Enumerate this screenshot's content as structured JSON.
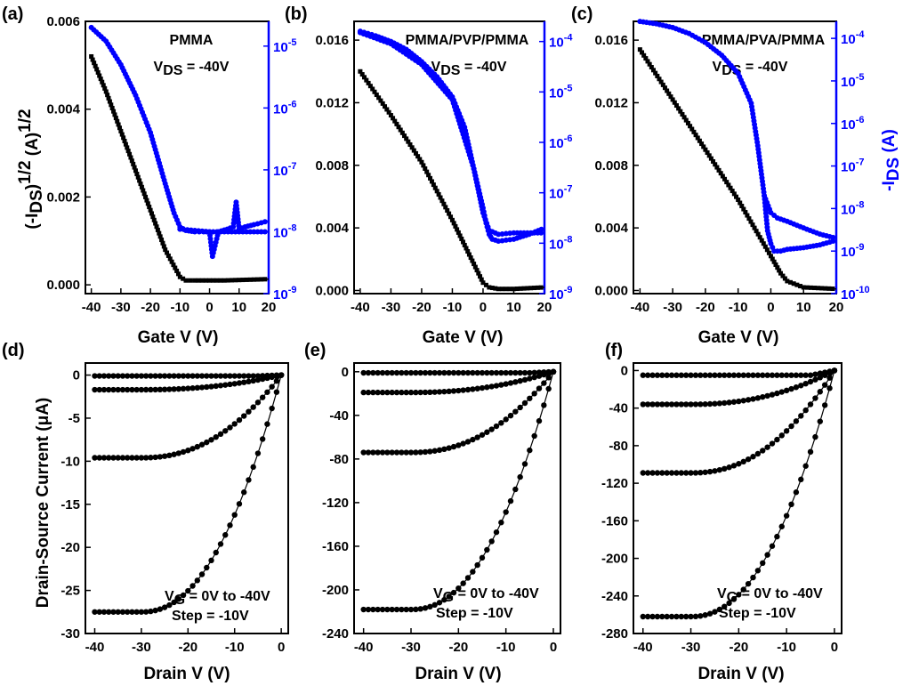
{
  "chart_data": [
    {
      "panel": "(a)",
      "type": "line",
      "xlabel": "Gate V (V)",
      "ylabel": "(-I_DS)^1/2 (A)^1/2",
      "xlim": [
        -42,
        20
      ],
      "xticks": [
        "-40",
        "-30",
        "-20",
        "-10",
        "0",
        "10",
        "20"
      ],
      "ylim": [
        -0.0002,
        0.006
      ],
      "yticks": [
        "0.000",
        "0.002",
        "0.004",
        "0.006"
      ],
      "y2_log": true,
      "y2lim_exp": [
        -9,
        -4.6
      ],
      "y2ticks_exp": [
        -9,
        -8,
        -7,
        -6,
        -5
      ],
      "annotations": [
        "PMMA",
        "V_DS = -40V"
      ],
      "colors": {
        "sqrt": "#000000",
        "log": "#0000ff"
      },
      "series": [
        {
          "x": [
            -40,
            -35,
            -30,
            -25,
            -20,
            -15,
            -10,
            -8,
            -5,
            0,
            5,
            10,
            20
          ],
          "values": [
            0.0052,
            0.0044,
            0.0035,
            0.0026,
            0.0017,
            0.0008,
            0.00018,
            0.0001,
            0.0001,
            0.0001,
            0.0001,
            0.00011,
            0.00013
          ]
        },
        {
          "x": [
            -40,
            -35,
            -30,
            -25,
            -20,
            -15,
            -12,
            -10,
            -8,
            -5,
            -2,
            0,
            1,
            3,
            6,
            8,
            9,
            10,
            12,
            15,
            20
          ],
          "values": [
            2e-05,
            1.2e-05,
            5e-06,
            1.6e-06,
            4e-07,
            6e-08,
            2e-08,
            1.2e-08,
            1.05e-08,
            1e-08,
            1e-08,
            1e-08,
            4e-09,
            1e-08,
            1.1e-08,
            1.2e-08,
            3e-08,
            1.1e-08,
            1.2e-08,
            1.3e-08,
            1.5e-08
          ]
        },
        {
          "x": [
            -10,
            0,
            10,
            20
          ],
          "values": [
            1.1e-08,
            1e-08,
            1e-08,
            1e-08
          ]
        }
      ]
    },
    {
      "panel": "(b)",
      "type": "line",
      "xlabel": "Gate V (V)",
      "ylabel": "",
      "xlim": [
        -42,
        20
      ],
      "xticks": [
        "-40",
        "-30",
        "-20",
        "-10",
        "0",
        "10",
        "20"
      ],
      "ylim": [
        -0.0002,
        0.0172
      ],
      "yticks": [
        "0.000",
        "0.004",
        "0.008",
        "0.012",
        "0.016"
      ],
      "y2_log": true,
      "y2lim_exp": [
        -9,
        -3.6
      ],
      "y2ticks_exp": [
        -9,
        -8,
        -7,
        -6,
        -5,
        -4
      ],
      "annotations": [
        "PMMA/PVP/PMMA",
        "V_DS = -40V"
      ],
      "colors": {
        "sqrt": "#000000",
        "log": "#0000ff"
      },
      "series": [
        {
          "x": [
            -40,
            -30,
            -20,
            -10,
            -5,
            0,
            2,
            5,
            10,
            20
          ],
          "values": [
            0.014,
            0.0112,
            0.0082,
            0.0045,
            0.0025,
            0.0005,
            0.0002,
            0.0001,
            0.0001,
            0.0002
          ]
        },
        {
          "x": [
            -40,
            -35,
            -30,
            -25,
            -20,
            -15,
            -10,
            -6,
            -3,
            0,
            1,
            2,
            3,
            5,
            10,
            15,
            20
          ],
          "values": [
            0.00016,
            0.00013,
            0.0001,
            7e-05,
            4e-05,
            2e-05,
            8e-06,
            2e-06,
            3e-07,
            5e-08,
            2.5e-08,
            1.5e-08,
            1.2e-08,
            1.1e-08,
            1.2e-08,
            1.5e-08,
            2e-08
          ]
        },
        {
          "x": [
            -40,
            -30,
            -20,
            -10,
            -3,
            0,
            2,
            5,
            10,
            20
          ],
          "values": [
            0.00015,
            9e-05,
            3.5e-05,
            7e-06,
            3e-07,
            4e-08,
            1.8e-08,
            1.5e-08,
            1.6e-08,
            1.6e-08
          ]
        }
      ]
    },
    {
      "panel": "(c)",
      "type": "line",
      "xlabel": "Gate V (V)",
      "ylabel": "-I_DS (A)",
      "xlim": [
        -42,
        20
      ],
      "xticks": [
        "-40",
        "-30",
        "-20",
        "-10",
        "0",
        "10",
        "20"
      ],
      "ylim": [
        -0.0002,
        0.0172
      ],
      "yticks": [
        "0.000",
        "0.004",
        "0.008",
        "0.012",
        "0.016"
      ],
      "y2_log": true,
      "y2lim_exp": [
        -10,
        -3.6
      ],
      "y2ticks_exp": [
        -10,
        -9,
        -8,
        -7,
        -6,
        -5,
        -4
      ],
      "annotations": [
        "PMMA/PVA/PMMA",
        "V_DS = -40V"
      ],
      "colors": {
        "sqrt": "#000000",
        "log": "#0000ff"
      },
      "series": [
        {
          "x": [
            -40,
            -30,
            -20,
            -10,
            -5,
            0,
            3,
            5,
            10,
            20
          ],
          "values": [
            0.0154,
            0.0122,
            0.009,
            0.0058,
            0.004,
            0.0022,
            0.0011,
            0.0006,
            0.0002,
            0.0001
          ]
        },
        {
          "x": [
            -40,
            -35,
            -30,
            -25,
            -20,
            -15,
            -10,
            -6,
            -4,
            -2,
            -1,
            0,
            1,
            3,
            5,
            10,
            15,
            20
          ],
          "values": [
            0.00025,
            0.00022,
            0.00018,
            0.00013,
            8e-05,
            4e-05,
            1.5e-05,
            3e-06,
            3e-07,
            2e-08,
            3e-09,
            1.5e-09,
            1e-09,
            1e-09,
            1.1e-09,
            1.2e-09,
            1.4e-09,
            1.8e-09
          ]
        },
        {
          "x": [
            -2,
            0,
            2,
            5,
            10,
            15,
            20
          ],
          "values": [
            2e-08,
            8e-09,
            6e-09,
            5e-09,
            3.5e-09,
            2.5e-09,
            2e-09
          ]
        }
      ]
    },
    {
      "panel": "(d)",
      "type": "line",
      "xlabel": "Drain V (V)",
      "ylabel": "Drain-Source Current (μA)",
      "xlim": [
        -42,
        1.5
      ],
      "xticks": [
        "-40",
        "-30",
        "-20",
        "-10",
        "0"
      ],
      "ylim": [
        -30,
        1.4
      ],
      "yticks": [
        "0",
        "-5",
        "-10",
        "-15",
        "-20",
        "-25",
        "-30"
      ],
      "annotations": [
        "V_G = 0V to -40V",
        "Step = -10V"
      ],
      "series": [
        {
          "sat": -0.1,
          "vth": -1
        },
        {
          "sat": -1.7,
          "vth": -2
        },
        {
          "sat": -9.6,
          "vth": -2
        },
        {
          "sat": -27.5,
          "vth": -2
        }
      ]
    },
    {
      "panel": "(e)",
      "type": "line",
      "xlabel": "Drain V (V)",
      "ylabel": "",
      "xlim": [
        -42,
        1.5
      ],
      "xticks": [
        "-40",
        "-30",
        "-20",
        "-10",
        "0"
      ],
      "ylim": [
        -240,
        8
      ],
      "yticks": [
        "0",
        "-40",
        "-80",
        "-120",
        "-160",
        "-200",
        "-240"
      ],
      "annotations": [
        "V_G = 0V to -40V",
        "Step = -10V"
      ],
      "series": [
        {
          "sat": -1,
          "vth": -1
        },
        {
          "sat": -19,
          "vth": -2
        },
        {
          "sat": -74,
          "vth": -2
        },
        {
          "sat": -218,
          "vth": -2
        }
      ]
    },
    {
      "panel": "(f)",
      "type": "line",
      "xlabel": "Drain V (V)",
      "ylabel": "",
      "xlim": [
        -42,
        1.5
      ],
      "xticks": [
        "-40",
        "-30",
        "-20",
        "-10",
        "0"
      ],
      "ylim": [
        -280,
        8
      ],
      "yticks": [
        "0",
        "-40",
        "-80",
        "-120",
        "-160",
        "-200",
        "-240",
        "-280"
      ],
      "annotations": [
        "V_G = 0V to -40V",
        "Step = -10V"
      ],
      "series": [
        {
          "sat": -5,
          "vth": -1
        },
        {
          "sat": -36,
          "vth": -2
        },
        {
          "sat": -109,
          "vth": -2
        },
        {
          "sat": -262,
          "vth": -2
        }
      ]
    }
  ]
}
